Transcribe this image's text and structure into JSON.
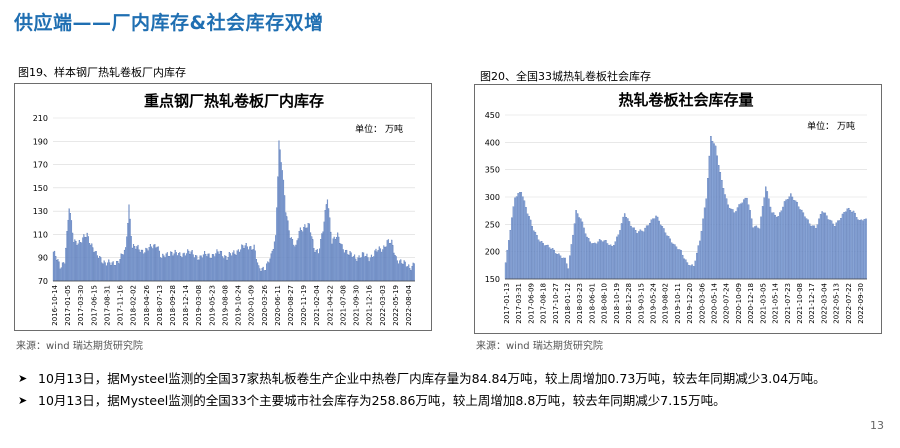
{
  "slide": {
    "title": "供应端——厂内库存&社会库存双增",
    "page_number": "13",
    "watermark": "瑞达期货"
  },
  "figures": [
    {
      "caption": "图19、样本钢厂热轧卷板厂内库存",
      "source": "来源：wind   瑞达期货研究院"
    },
    {
      "caption": "图20、全国33城热轧卷板社会库存",
      "source": "来源：wind   瑞达期货研究院"
    }
  ],
  "bullets": [
    "10月13日，据Mysteel监测的全国37家热轧板卷生产企业中热卷厂内库存量为84.84万吨，较上周增加0.73万吨，较去年同期减少3.04万吨。",
    "10月13日，据Mysteel监测的全国33个主要城市社会库存为258.86万吨，较上周增加8.8万吨，较去年同期减少7.15万吨。"
  ],
  "colors": {
    "bar": "#8aa6d8",
    "bar_edge": "#3f63a8",
    "title": "#1f6fb2"
  },
  "chart_data": [
    {
      "type": "bar",
      "title": "重点钢厂热轧卷板厂内库存",
      "unit_label": "单位：  万吨",
      "xlabel": "",
      "ylabel": "",
      "ylim": [
        70,
        210
      ],
      "yticks": [
        70,
        90,
        110,
        130,
        150,
        170,
        190,
        210
      ],
      "x_tick_labels": [
        "2016-10-14",
        "2017-01-05",
        "2017-03-30",
        "2017-06-15",
        "2017-08-31",
        "2017-11-16",
        "2018-02-02",
        "2018-04-26",
        "2018-07-13",
        "2018-09-28",
        "2018-12-14",
        "2019-03-08",
        "2019-05-23",
        "2019-08-08",
        "2019-10-24",
        "2020-01-09",
        "2020-03-26",
        "2020-06-11",
        "2020-08-27",
        "2020-11-19",
        "2021-02-04",
        "2021-04-22",
        "2021-07-08",
        "2021-09-30",
        "2021-12-16",
        "2022-03-03",
        "2022-05-19",
        "2022-08-04"
      ],
      "keypoints": [
        [
          0,
          95
        ],
        [
          6,
          82
        ],
        [
          10,
          88
        ],
        [
          14,
          133
        ],
        [
          18,
          105
        ],
        [
          24,
          103
        ],
        [
          30,
          110
        ],
        [
          38,
          92
        ],
        [
          46,
          86
        ],
        [
          52,
          84
        ],
        [
          58,
          88
        ],
        [
          64,
          96
        ],
        [
          67,
          135
        ],
        [
          70,
          100
        ],
        [
          78,
          96
        ],
        [
          86,
          98
        ],
        [
          92,
          102
        ],
        [
          96,
          89
        ],
        [
          104,
          95
        ],
        [
          112,
          92
        ],
        [
          118,
          95
        ],
        [
          124,
          93
        ],
        [
          130,
          90
        ],
        [
          136,
          93
        ],
        [
          142,
          92
        ],
        [
          148,
          95
        ],
        [
          154,
          90
        ],
        [
          160,
          94
        ],
        [
          166,
          98
        ],
        [
          172,
          100
        ],
        [
          178,
          99
        ],
        [
          182,
          80
        ],
        [
          188,
          82
        ],
        [
          193,
          90
        ],
        [
          197,
          108
        ],
        [
          200,
          190
        ],
        [
          203,
          165
        ],
        [
          206,
          130
        ],
        [
          210,
          110
        ],
        [
          215,
          98
        ],
        [
          218,
          112
        ],
        [
          223,
          118
        ],
        [
          227,
          117
        ],
        [
          231,
          98
        ],
        [
          235,
          96
        ],
        [
          239,
          113
        ],
        [
          243,
          142
        ],
        [
          247,
          105
        ],
        [
          252,
          108
        ],
        [
          256,
          100
        ],
        [
          262,
          93
        ],
        [
          268,
          90
        ],
        [
          274,
          92
        ],
        [
          280,
          90
        ],
        [
          286,
          95
        ],
        [
          292,
          98
        ],
        [
          296,
          104
        ],
        [
          300,
          102
        ],
        [
          304,
          90
        ],
        [
          310,
          85
        ],
        [
          316,
          82
        ],
        [
          320,
          85
        ]
      ]
    },
    {
      "type": "bar",
      "title": "热轧卷板社会库存量",
      "unit_label": "单位：  万吨",
      "xlabel": "",
      "ylabel": "",
      "ylim": [
        150,
        450
      ],
      "yticks": [
        150,
        200,
        250,
        300,
        350,
        400,
        450
      ],
      "x_tick_labels": [
        "2017-01-13",
        "2017-03-31",
        "2017-06-09",
        "2017-08-18",
        "2017-10-27",
        "2018-01-12",
        "2018-03-23",
        "2018-06-01",
        "2018-08-10",
        "2018-10-19",
        "2018-12-28",
        "2019-03-15",
        "2019-05-24",
        "2019-08-02",
        "2019-10-11",
        "2019-12-20",
        "2020-03-06",
        "2020-05-14",
        "2020-07-24",
        "2020-10-09",
        "2020-12-18",
        "2021-03-05",
        "2021-05-14",
        "2021-07-23",
        "2021-10-08",
        "2021-12-17",
        "2022-03-04",
        "2022-05-13",
        "2022-07-22",
        "2022-09-30"
      ],
      "keypoints": [
        [
          0,
          180
        ],
        [
          3,
          240
        ],
        [
          6,
          300
        ],
        [
          10,
          312
        ],
        [
          14,
          270
        ],
        [
          18,
          240
        ],
        [
          22,
          220
        ],
        [
          26,
          210
        ],
        [
          30,
          205
        ],
        [
          34,
          195
        ],
        [
          38,
          185
        ],
        [
          40,
          170
        ],
        [
          45,
          275
        ],
        [
          48,
          260
        ],
        [
          52,
          225
        ],
        [
          56,
          215
        ],
        [
          60,
          220
        ],
        [
          64,
          218
        ],
        [
          68,
          210
        ],
        [
          72,
          230
        ],
        [
          76,
          270
        ],
        [
          80,
          250
        ],
        [
          84,
          235
        ],
        [
          88,
          238
        ],
        [
          92,
          255
        ],
        [
          96,
          265
        ],
        [
          100,
          245
        ],
        [
          104,
          228
        ],
        [
          108,
          210
        ],
        [
          112,
          200
        ],
        [
          116,
          180
        ],
        [
          120,
          172
        ],
        [
          124,
          220
        ],
        [
          128,
          300
        ],
        [
          131,
          410
        ],
        [
          134,
          390
        ],
        [
          138,
          330
        ],
        [
          142,
          285
        ],
        [
          146,
          270
        ],
        [
          150,
          290
        ],
        [
          154,
          300
        ],
        [
          158,
          245
        ],
        [
          162,
          245
        ],
        [
          166,
          320
        ],
        [
          170,
          270
        ],
        [
          174,
          265
        ],
        [
          178,
          290
        ],
        [
          182,
          303
        ],
        [
          186,
          290
        ],
        [
          190,
          270
        ],
        [
          194,
          250
        ],
        [
          198,
          245
        ],
        [
          202,
          275
        ],
        [
          206,
          260
        ],
        [
          210,
          250
        ],
        [
          214,
          262
        ],
        [
          218,
          278
        ],
        [
          222,
          275
        ],
        [
          226,
          255
        ],
        [
          230,
          260
        ]
      ]
    }
  ]
}
